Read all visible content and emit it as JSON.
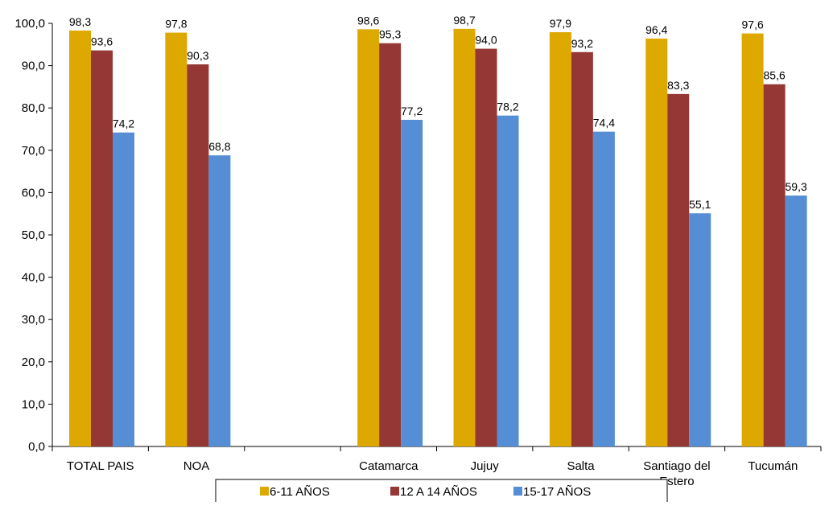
{
  "chart_data": {
    "type": "bar",
    "categories": [
      "TOTAL PAIS",
      "NOA",
      "",
      "Catamarca",
      "Jujuy",
      "Salta",
      "Santiago del Estero",
      "Tucumán"
    ],
    "category_label_lines": [
      [
        "TOTAL PAIS"
      ],
      [
        "NOA"
      ],
      [
        ""
      ],
      [
        "Catamarca"
      ],
      [
        "Jujuy"
      ],
      [
        "Salta"
      ],
      [
        "Santiago del",
        "Estero"
      ],
      [
        "Tucumán"
      ]
    ],
    "series": [
      {
        "name": "6-11 AÑOS",
        "color": "#DDA800",
        "values": [
          98.3,
          97.8,
          null,
          98.6,
          98.7,
          97.9,
          96.4,
          97.6
        ]
      },
      {
        "name": "12 A 14 AÑOS",
        "color": "#953735",
        "values": [
          93.6,
          90.3,
          null,
          95.3,
          94.0,
          93.2,
          83.3,
          85.6
        ]
      },
      {
        "name": "15-17 AÑOS",
        "color": "#558ED5",
        "values": [
          74.2,
          68.8,
          null,
          77.2,
          78.2,
          74.4,
          55.1,
          59.3
        ]
      }
    ],
    "ylim": [
      0,
      100
    ],
    "yticks": [
      "0,0",
      "10,0",
      "20,0",
      "30,0",
      "40,0",
      "50,0",
      "60,0",
      "70,0",
      "80,0",
      "90,0",
      "100,0"
    ],
    "grid": false,
    "legend_position": "bottom",
    "data_labels": true,
    "decimal_separator": ","
  }
}
